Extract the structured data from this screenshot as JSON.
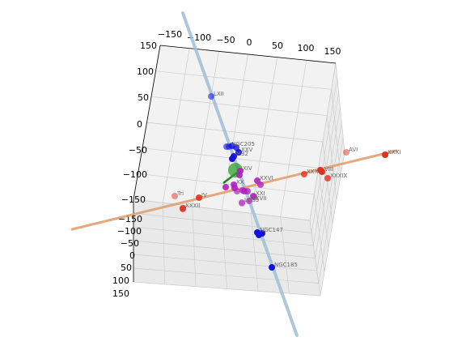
{
  "chart_data": {
    "type": "scatter",
    "title": "",
    "xlabel": "",
    "ylabel": "",
    "zlabel": "",
    "projection": "3d",
    "grid": true,
    "xlim": [
      -150,
      150
    ],
    "ylim": [
      -150,
      150
    ],
    "zlim": [
      -150,
      150
    ],
    "x_ticks": [
      "−150",
      "−100",
      "−50",
      "0",
      "50",
      "100",
      "150"
    ],
    "y_ticks": [
      "150",
      "100",
      "50",
      "0",
      "−50",
      "−100",
      "−150"
    ],
    "z_ticks": [
      "−150",
      "−100",
      "−50",
      "0",
      "50",
      "100",
      "150"
    ],
    "colors": {
      "blue_line": "#9fbfd8",
      "orange_line": "#e0a070",
      "green_marker": "#2ca02c",
      "blue_points": "#1010e0",
      "red_points": "#e03020",
      "magenta_points": "#b020c0",
      "pane": "#f2f2f2",
      "grid": "#cccccc"
    },
    "labeled_points": [
      {
        "label": "LXII",
        "group": "blue"
      },
      {
        "label": "NGC205",
        "group": "blue"
      },
      {
        "label": "XXV",
        "group": "blue"
      },
      {
        "label": "M32",
        "group": "blue"
      },
      {
        "label": "NGC147",
        "group": "blue"
      },
      {
        "label": "NGC185",
        "group": "blue"
      },
      {
        "label": "XIV",
        "group": "magenta"
      },
      {
        "label": "XXVI",
        "group": "magenta"
      },
      {
        "label": "XX",
        "group": "magenta"
      },
      {
        "label": "XXI",
        "group": "magenta"
      },
      {
        "label": "XXVII",
        "group": "magenta"
      },
      {
        "label": "LGS3",
        "group": "magenta"
      },
      {
        "label": "AVI",
        "group": "red"
      },
      {
        "label": "XXXI",
        "group": "red"
      },
      {
        "label": "XXXIX",
        "group": "red"
      },
      {
        "label": "VIII",
        "group": "red"
      },
      {
        "label": "XXX",
        "group": "red"
      },
      {
        "label": "Tri",
        "group": "red"
      },
      {
        "label": "IV",
        "group": "red"
      },
      {
        "label": "XXXII",
        "group": "red"
      }
    ]
  }
}
